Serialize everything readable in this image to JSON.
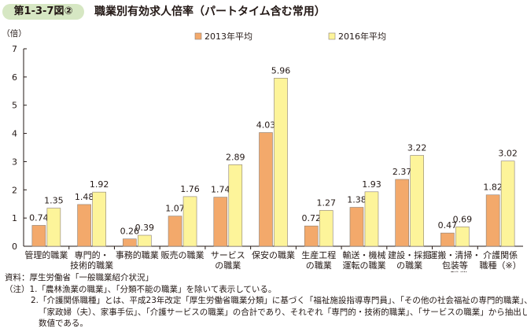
{
  "header": {
    "figure_label": "第1-3-7図②",
    "title": "職業別有効求人倍率（パートタイム含む常用）"
  },
  "chart_data": {
    "type": "bar",
    "title": "職業別有効求人倍率（パートタイム含む常用）",
    "ylabel": "（倍）",
    "ylim": [
      0,
      7
    ],
    "yticks": [
      0,
      1,
      2,
      3,
      4,
      5,
      6,
      7
    ],
    "grid": false,
    "legend_position": "top",
    "categories": [
      [
        "管理的職業"
      ],
      [
        "専門的・",
        "技術的職業"
      ],
      [
        "事務的職業"
      ],
      [
        "販売の職業"
      ],
      [
        "サービス",
        "の職業"
      ],
      [
        "保安の職業"
      ],
      [
        "生産工程",
        "の職業"
      ],
      [
        "輸送・機械",
        "運転の職業"
      ],
      [
        "建設・採掘",
        "の職業"
      ],
      [
        "運搬・清掃・",
        "包装等",
        "の職業"
      ],
      [
        "介護関係",
        "職種（※）"
      ]
    ],
    "series": [
      {
        "name": "2013年平均",
        "color": "#f3a96b",
        "values": [
          0.74,
          1.48,
          0.26,
          1.07,
          1.74,
          4.03,
          0.72,
          1.38,
          2.37,
          0.47,
          1.82
        ],
        "labels": [
          "0.74",
          "1.48",
          "0.26",
          "1.07",
          "1.74",
          "4.03",
          "0.72",
          "1.38",
          "2.37",
          "0.47",
          "1.82"
        ]
      },
      {
        "name": "2016年平均",
        "color": "#fdf49a",
        "values": [
          1.35,
          1.92,
          0.39,
          1.76,
          2.89,
          5.96,
          1.27,
          1.93,
          3.22,
          0.69,
          3.02
        ],
        "labels": [
          "1.35",
          "1.92",
          "0.39",
          "1.76",
          "2.89",
          "5.96",
          "1.27",
          "1.93",
          "3.22",
          "0.69",
          "3.02"
        ]
      }
    ]
  },
  "notes": {
    "source": "資料：厚生労働省「一般職業紹介状況」",
    "note1": "（注）1.「農林漁業の職業」、「分類不能の職業」を除いて表示している。",
    "note2a": "2.「介護関係職種」とは、平成23年改定「厚生労働省職業分類」に基づく「福祉施設指導専門員」、「その他の社会福祉の専門的職業」、",
    "note2b": "「家政婦（夫）、家事手伝」、「介護サービスの職業」の合計であり、それぞれ「専門的・技術的職業」、「サービスの職業」から抽出した",
    "note2c": "数値である。"
  }
}
